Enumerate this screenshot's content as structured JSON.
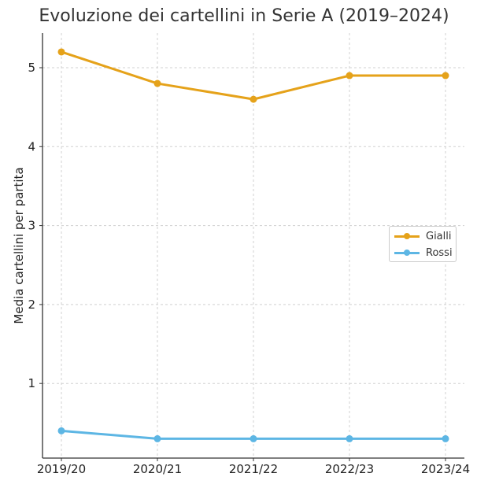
{
  "title": "Evoluzione dei cartellini in Serie A (2019–2024)",
  "chart_data": {
    "type": "line",
    "title": "Evoluzione dei cartellini in Serie A (2019–2024)",
    "xlabel": "",
    "ylabel": "Media cartellini per partita",
    "categories": [
      "2019/20",
      "2020/21",
      "2021/22",
      "2022/23",
      "2023/24"
    ],
    "series": [
      {
        "name": "Gialli",
        "color": "#E5A21A",
        "values": [
          5.2,
          4.8,
          4.6,
          4.9,
          4.9
        ]
      },
      {
        "name": "Rossi",
        "color": "#5DB6E4",
        "values": [
          0.4,
          0.3,
          0.3,
          0.3,
          0.3
        ]
      }
    ],
    "yticks": [
      1,
      2,
      3,
      4,
      5
    ],
    "ylim": [
      0.05,
      5.45
    ],
    "grid": true,
    "legend_position": "center right"
  },
  "legend": {
    "items": [
      {
        "label": "Gialli",
        "color": "#E5A21A"
      },
      {
        "label": "Rossi",
        "color": "#5DB6E4"
      }
    ]
  }
}
